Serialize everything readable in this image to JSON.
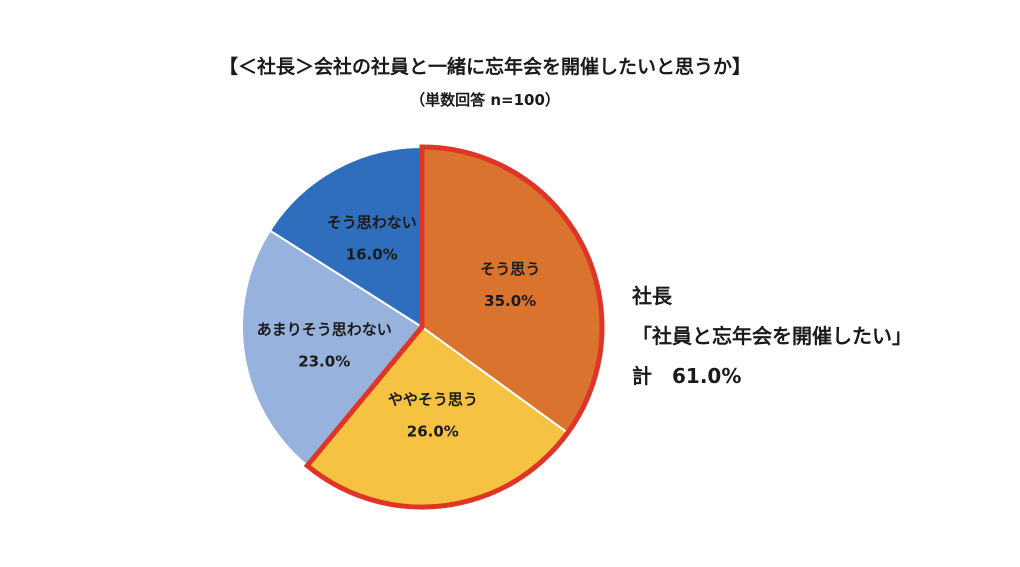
{
  "title": "【＜社長＞会社の社員と一緒に忘年会を開催したいと思うか】",
  "subtitle": "（単数回答 n=100）",
  "chart_data": {
    "type": "pie",
    "title": "【＜社長＞会社の社員と一緒に忘年会を開催したいと思うか】",
    "subtitle": "（単数回答 n=100）",
    "slices": [
      {
        "label": "そう思う",
        "value": 35.0,
        "display": "35.0%",
        "color": "#d9732d",
        "highlight": true
      },
      {
        "label": "ややそう思う",
        "value": 26.0,
        "display": "26.0%",
        "color": "#f5c242",
        "highlight": true
      },
      {
        "label": "あまりそう思わない",
        "value": 23.0,
        "display": "23.0%",
        "color": "#97b3dd",
        "highlight": false
      },
      {
        "label": "そう思わない",
        "value": 16.0,
        "display": "16.0%",
        "color": "#2f6ebc",
        "highlight": false
      }
    ],
    "start": "12 o'clock",
    "direction": "clockwise",
    "highlight_outline_color": "#e03526",
    "legend": "none"
  },
  "callout": {
    "line1": "社長",
    "line2": "「社員と忘年会を開催したい」",
    "line3": "計　61.0%"
  }
}
